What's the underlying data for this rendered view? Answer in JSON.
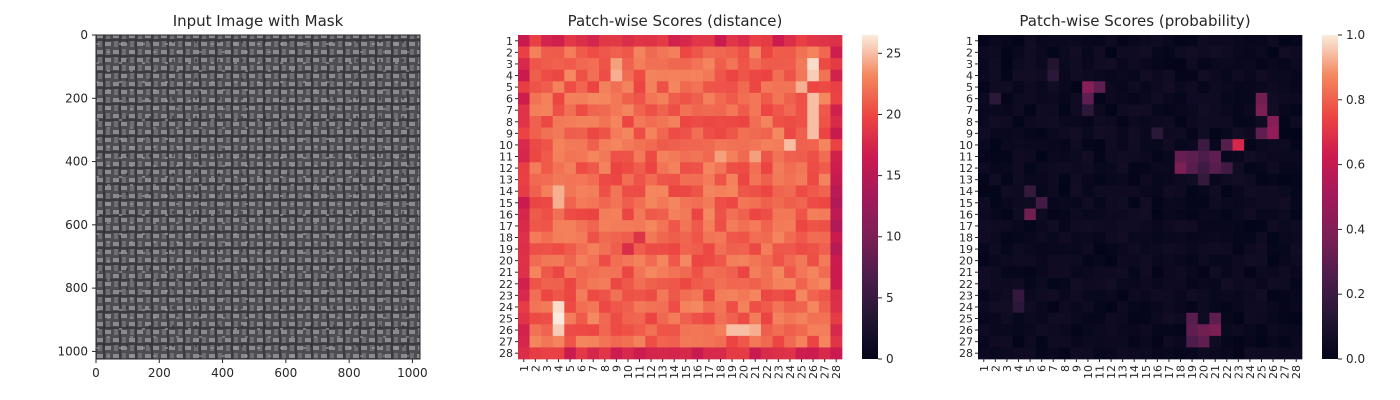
{
  "chart_data": [
    {
      "type": "image",
      "title": "Input Image with Mask",
      "x_ticks": [
        "0",
        "200",
        "400",
        "600",
        "800",
        "1000"
      ],
      "y_ticks": [
        "0",
        "200",
        "400",
        "600",
        "800",
        "1000"
      ],
      "xlim": [
        0,
        1024
      ],
      "ylim": [
        1024,
        0
      ],
      "image_content": "grayscale woven fabric texture"
    },
    {
      "type": "heatmap",
      "title": "Patch-wise Scores (distance)",
      "rows": 28,
      "cols": 28,
      "row_labels": [
        "1",
        "2",
        "3",
        "4",
        "5",
        "6",
        "7",
        "8",
        "9",
        "10",
        "11",
        "12",
        "13",
        "14",
        "15",
        "16",
        "17",
        "18",
        "19",
        "20",
        "21",
        "22",
        "23",
        "24",
        "25",
        "26",
        "27",
        "28"
      ],
      "col_labels": [
        "1",
        "2",
        "3",
        "4",
        "5",
        "6",
        "7",
        "8",
        "9",
        "10",
        "11",
        "12",
        "13",
        "14",
        "15",
        "16",
        "17",
        "18",
        "19",
        "20",
        "21",
        "22",
        "23",
        "24",
        "25",
        "26",
        "27",
        "28"
      ],
      "colorbar_ticks": [
        "0",
        "5",
        "10",
        "15",
        "20",
        "25"
      ],
      "vmin": 0,
      "vmax": 26.5,
      "colormap": "rocket",
      "value_description": "mostly 20-26; edges darker (~17-19); brightest patches near top-right (cols 25-26) and bottom-left (col 3, rows 23-25)"
    },
    {
      "type": "heatmap",
      "title": "Patch-wise Scores (probability)",
      "rows": 28,
      "cols": 28,
      "row_labels": [
        "1",
        "2",
        "3",
        "4",
        "5",
        "6",
        "7",
        "8",
        "9",
        "10",
        "11",
        "12",
        "13",
        "14",
        "15",
        "16",
        "17",
        "18",
        "19",
        "20",
        "21",
        "22",
        "23",
        "24",
        "25",
        "26",
        "27",
        "28"
      ],
      "col_labels": [
        "1",
        "2",
        "3",
        "4",
        "5",
        "6",
        "7",
        "8",
        "9",
        "10",
        "11",
        "12",
        "13",
        "14",
        "15",
        "16",
        "17",
        "18",
        "19",
        "20",
        "21",
        "22",
        "23",
        "24",
        "25",
        "26",
        "27",
        "28"
      ],
      "colorbar_ticks": [
        "0.0",
        "0.2",
        "0.4",
        "0.6",
        "0.8",
        "1.0"
      ],
      "vmin": 0,
      "vmax": 1,
      "colormap": "rocket",
      "value_description": "mostly near 0; hotspot of ~0.65 at row 10 col 23; moderate 0.3-0.5 clusters around rows 5-6 col 10, rows 6-9 col 25-26, rows 11-12 cols 17-21, rows 25-27 cols 18-21, row 16 col 5"
    }
  ]
}
